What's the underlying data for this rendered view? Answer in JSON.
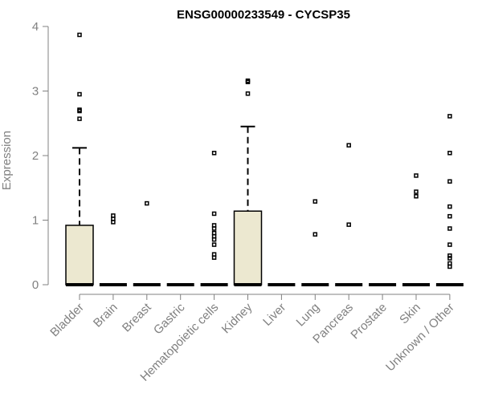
{
  "chart_data": {
    "type": "box",
    "title": "ENSG00000233549 - CYCSP35",
    "xlabel": "",
    "ylabel": "Expression",
    "ylim": [
      0,
      4
    ],
    "yticks": [
      0,
      1,
      2,
      3,
      4
    ],
    "grid": false,
    "colors": {
      "box_fill": "#ece8d0",
      "stroke": "#000000",
      "axis": "#808080"
    },
    "categories": [
      "Bladder",
      "Brain",
      "Breast",
      "Gastric",
      "Hematopoietic cells",
      "Kidney",
      "Liver",
      "Lung",
      "Pancreas",
      "Prostate",
      "Skin",
      "Unknown / Other"
    ],
    "boxes": [
      {
        "min": 0,
        "q1": 0,
        "median": 0,
        "q3": 0.92,
        "max": 2.12,
        "outliers": [
          3.87,
          2.95,
          2.71,
          2.69,
          2.57
        ]
      },
      {
        "min": 0,
        "q1": 0,
        "median": 0,
        "q3": 0,
        "max": 0,
        "outliers": [
          1.07,
          1.02,
          0.97
        ]
      },
      {
        "min": 0,
        "q1": 0,
        "median": 0,
        "q3": 0,
        "max": 0,
        "outliers": [
          1.26
        ]
      },
      {
        "min": 0,
        "q1": 0,
        "median": 0,
        "q3": 0,
        "max": 0,
        "outliers": []
      },
      {
        "min": 0,
        "q1": 0,
        "median": 0,
        "q3": 0,
        "max": 0,
        "outliers": [
          2.04,
          1.1,
          0.92,
          0.87,
          0.8,
          0.75,
          0.7,
          0.62,
          0.47,
          0.42
        ]
      },
      {
        "min": 0,
        "q1": 0,
        "median": 0,
        "q3": 1.14,
        "max": 2.45,
        "outliers": [
          3.16,
          3.14,
          2.96
        ]
      },
      {
        "min": 0,
        "q1": 0,
        "median": 0,
        "q3": 0,
        "max": 0,
        "outliers": []
      },
      {
        "min": 0,
        "q1": 0,
        "median": 0,
        "q3": 0,
        "max": 0,
        "outliers": [
          1.29,
          0.78
        ]
      },
      {
        "min": 0,
        "q1": 0,
        "median": 0,
        "q3": 0,
        "max": 0,
        "outliers": [
          2.16,
          0.93
        ]
      },
      {
        "min": 0,
        "q1": 0,
        "median": 0,
        "q3": 0,
        "max": 0,
        "outliers": []
      },
      {
        "min": 0,
        "q1": 0,
        "median": 0,
        "q3": 0,
        "max": 0,
        "outliers": [
          1.69,
          1.44,
          1.37
        ]
      },
      {
        "min": 0,
        "q1": 0,
        "median": 0,
        "q3": 0,
        "max": 0,
        "outliers": [
          2.61,
          2.04,
          1.6,
          1.21,
          1.06,
          0.87,
          0.62,
          0.45,
          0.41,
          0.33,
          0.28
        ]
      }
    ]
  }
}
